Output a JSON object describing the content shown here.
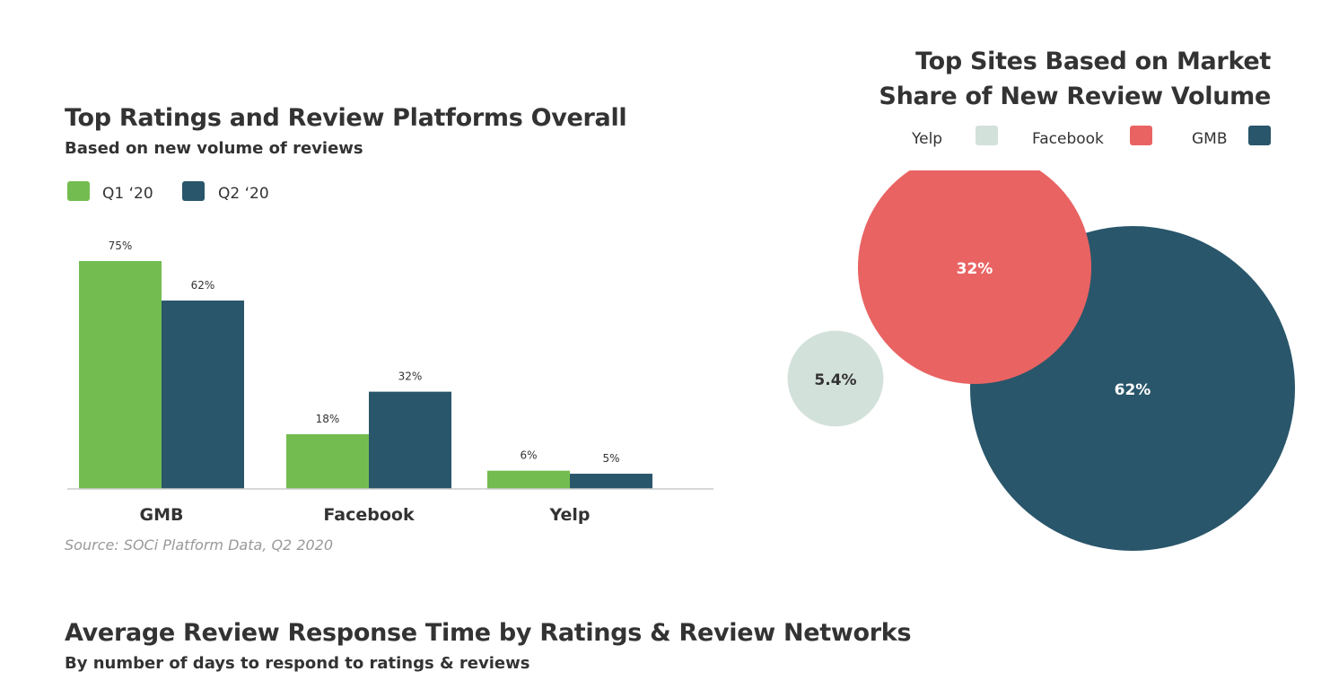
{
  "colors": {
    "q1": "#73bd50",
    "q2": "#29566a",
    "yelp": "#d3e1db",
    "facebook": "#e96363",
    "gmb": "#29566a",
    "axis": "#cccccc",
    "text": "#333333"
  },
  "chart_data": [
    {
      "type": "bar",
      "title": "Top Ratings and Review Platforms Overall",
      "subtitle": "Based on new volume of reviews",
      "categories": [
        "GMB",
        "Facebook",
        "Yelp"
      ],
      "series": [
        {
          "name": "Q1 ‘20",
          "values": [
            75,
            18,
            6
          ],
          "labels": [
            "75%",
            "18%",
            "6%"
          ]
        },
        {
          "name": "Q2 ‘20",
          "values": [
            62,
            32,
            5
          ],
          "labels": [
            "62%",
            "32%",
            "5%"
          ]
        }
      ],
      "ylim": [
        0,
        75
      ],
      "grid": false,
      "legend": "top-left",
      "source": "Source: SOCi Platform Data, Q2 2020"
    },
    {
      "type": "bubble",
      "title_line1": "Top Sites Based on Market",
      "title_line2": "Share of New Review Volume",
      "legend": "top-right",
      "items": [
        {
          "name": "Yelp",
          "value": 5.4,
          "label": "5.4%"
        },
        {
          "name": "Facebook",
          "value": 32,
          "label": "32%"
        },
        {
          "name": "GMB",
          "value": 62,
          "label": "62%"
        }
      ]
    }
  ],
  "section": {
    "title": "Average Review Response Time by Ratings & Review Networks",
    "subtitle": "By number of days to respond to ratings & reviews"
  }
}
